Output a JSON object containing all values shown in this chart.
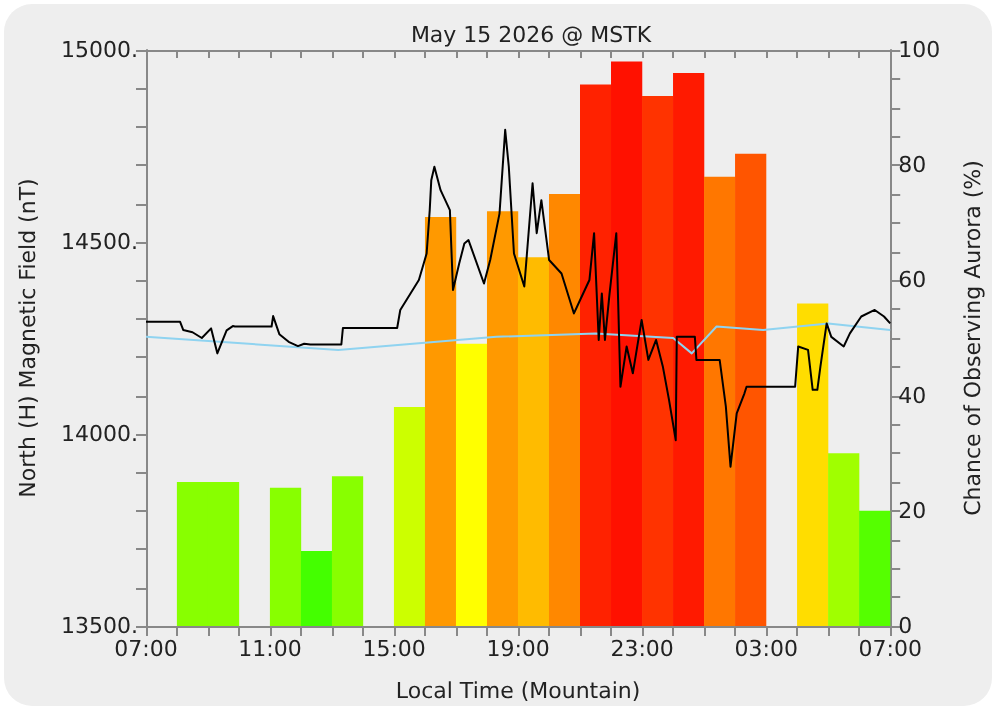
{
  "chart_data": {
    "type": "bar",
    "title": "May 15 2026 @ MSTK",
    "xlabel": "Local Time (Mountain)",
    "ylabel": "North (H) Magnetic Field (nT)",
    "y2label": "Chance of Observing Aurora (%)",
    "xlim": [
      "2026-05-15T07:00",
      "2026-05-16T07:00"
    ],
    "xticks": [
      {
        "value": "2026-05-15T07:00",
        "label": "07:00"
      },
      {
        "value": "2026-05-15T08:00",
        "label": null
      },
      {
        "value": "2026-05-15T09:00",
        "label": null
      },
      {
        "value": "2026-05-15T10:00",
        "label": null
      },
      {
        "value": "2026-05-15T11:00",
        "label": "11:00"
      },
      {
        "value": "2026-05-15T12:00",
        "label": null
      },
      {
        "value": "2026-05-15T13:00",
        "label": null
      },
      {
        "value": "2026-05-15T14:00",
        "label": null
      },
      {
        "value": "2026-05-15T15:00",
        "label": "15:00"
      },
      {
        "value": "2026-05-15T16:00",
        "label": null
      },
      {
        "value": "2026-05-15T17:00",
        "label": null
      },
      {
        "value": "2026-05-15T18:00",
        "label": null
      },
      {
        "value": "2026-05-15T19:00",
        "label": "19:00"
      },
      {
        "value": "2026-05-15T20:00",
        "label": null
      },
      {
        "value": "2026-05-15T21:00",
        "label": null
      },
      {
        "value": "2026-05-15T22:00",
        "label": null
      },
      {
        "value": "2026-05-15T23:00",
        "label": "23:00"
      },
      {
        "value": "2026-05-16T00:00",
        "label": null
      },
      {
        "value": "2026-05-16T01:00",
        "label": null
      },
      {
        "value": "2026-05-16T02:00",
        "label": null
      },
      {
        "value": "2026-05-16T03:00",
        "label": "03:00"
      },
      {
        "value": "2026-05-16T04:00",
        "label": null
      },
      {
        "value": "2026-05-16T05:00",
        "label": null
      },
      {
        "value": "2026-05-16T06:00",
        "label": null
      },
      {
        "value": "2026-05-16T07:00",
        "label": "07:00"
      }
    ],
    "ylim": [
      13500,
      15000
    ],
    "yticks": [
      {
        "value": 13500,
        "label": "13500."
      },
      {
        "value": 13600,
        "label": null
      },
      {
        "value": 13700,
        "label": null
      },
      {
        "value": 13800,
        "label": null
      },
      {
        "value": 13900,
        "label": null
      },
      {
        "value": 14000,
        "label": "14000."
      },
      {
        "value": 14100,
        "label": null
      },
      {
        "value": 14200,
        "label": null
      },
      {
        "value": 14300,
        "label": null
      },
      {
        "value": 14400,
        "label": null
      },
      {
        "value": 14500,
        "label": "14500."
      },
      {
        "value": 14600,
        "label": null
      },
      {
        "value": 14700,
        "label": null
      },
      {
        "value": 14800,
        "label": null
      },
      {
        "value": 14900,
        "label": null
      },
      {
        "value": 15000,
        "label": "15000."
      }
    ],
    "y2lim": [
      0,
      100
    ],
    "y2ticks": [
      0,
      {
        "value": 5,
        "label": null
      },
      {
        "value": 10,
        "label": null
      },
      {
        "value": 15,
        "label": null
      },
      20,
      {
        "value": 25,
        "label": null
      },
      {
        "value": 30,
        "label": null
      },
      {
        "value": 35,
        "label": null
      },
      40,
      {
        "value": 45,
        "label": null
      },
      {
        "value": 50,
        "label": null
      },
      {
        "value": 55,
        "label": null
      },
      60,
      {
        "value": 65,
        "label": null
      },
      {
        "value": 70,
        "label": null
      },
      {
        "value": 75,
        "label": null
      },
      80,
      {
        "value": 85,
        "label": null
      },
      {
        "value": 90,
        "label": null
      },
      {
        "value": 95,
        "label": null
      },
      100
    ],
    "series": [
      {
        "axis": "y2",
        "x": [
          "2026-05-15T08:30",
          "2026-05-15T09:30",
          "2026-05-15T11:30",
          "2026-05-15T12:30",
          "2026-05-15T13:30",
          "2026-05-15T15:30",
          "2026-05-15T16:30",
          "2026-05-15T17:30",
          "2026-05-15T18:30",
          "2026-05-15T19:30",
          "2026-05-15T20:30",
          "2026-05-15T21:30",
          "2026-05-15T22:30",
          "2026-05-15T23:30",
          "2026-05-16T00:30",
          "2026-05-16T01:30",
          "2026-05-16T02:30",
          "2026-05-16T04:30",
          "2026-05-16T05:30",
          "2026-05-16T06:30"
        ],
        "values": [
          25,
          25,
          24,
          13,
          26,
          38,
          71,
          49,
          72,
          64,
          75,
          94,
          98,
          92,
          96,
          78,
          82,
          56,
          30,
          20
        ],
        "colors": [
          "#88ff00",
          "#88ff00",
          "#88ff00",
          "#44ff00",
          "#88ff00",
          "#ccff00",
          "#ff9900",
          "#ffff00",
          "#ff9900",
          "#ffbb00",
          "#ff8800",
          "#ff2200",
          "#ff1100",
          "#ff3300",
          "#ff1a00",
          "#ff7700",
          "#ff5500",
          "#ffdd00",
          "#a0ff00",
          "#55ff00"
        ]
      },
      {
        "type": "line",
        "color": "#8fd3f0",
        "x": [
          "2026-05-15T07:00",
          "2026-05-15T13:12",
          "2026-05-15T18:18",
          "2026-05-15T21:30",
          "2026-05-16T00:00",
          "2026-05-16T00:36",
          "2026-05-16T01:24",
          "2026-05-16T02:54",
          "2026-05-16T05:00",
          "2026-05-16T07:00"
        ],
        "values": [
          14253,
          14219,
          14253,
          14262,
          14250,
          14210,
          14280,
          14271,
          14288,
          14271
        ]
      },
      {
        "type": "line",
        "color": "#000000",
        "x": [
          "2026-05-15T07:00",
          "2026-05-15T08:06",
          "2026-05-15T08:12",
          "2026-05-15T08:30",
          "2026-05-15T08:48",
          "2026-05-15T09:06",
          "2026-05-15T09:18",
          "2026-05-15T09:36",
          "2026-05-15T09:48",
          "2026-05-15T09:52",
          "2026-05-15T11:03",
          "2026-05-15T11:06",
          "2026-05-15T11:18",
          "2026-05-15T11:36",
          "2026-05-15T11:54",
          "2026-05-15T12:06",
          "2026-05-15T12:18",
          "2026-05-15T13:18",
          "2026-05-15T13:21",
          "2026-05-15T15:06",
          "2026-05-15T15:12",
          "2026-05-15T15:48",
          "2026-05-15T16:03",
          "2026-05-15T16:09",
          "2026-05-15T16:12",
          "2026-05-15T16:18",
          "2026-05-15T16:30",
          "2026-05-15T16:48",
          "2026-05-15T16:54",
          "2026-05-15T17:06",
          "2026-05-15T17:16",
          "2026-05-15T17:24",
          "2026-05-15T17:54",
          "2026-05-15T18:06",
          "2026-05-15T18:24",
          "2026-05-15T18:35",
          "2026-05-15T18:42",
          "2026-05-15T18:52",
          "2026-05-15T19:12",
          "2026-05-15T19:28",
          "2026-05-15T19:36",
          "2026-05-15T19:45",
          "2026-05-15T20:00",
          "2026-05-15T20:24",
          "2026-05-15T20:48",
          "2026-05-15T21:00",
          "2026-05-15T21:18",
          "2026-05-15T21:27",
          "2026-05-15T21:36",
          "2026-05-15T21:42",
          "2026-05-15T21:48",
          "2026-05-15T21:57",
          "2026-05-15T22:10",
          "2026-05-15T22:18",
          "2026-05-15T22:30",
          "2026-05-15T22:42",
          "2026-05-15T22:59",
          "2026-05-15T23:12",
          "2026-05-15T23:27",
          "2026-05-15T23:40",
          "2026-05-15T23:52",
          "2026-05-16T00:05",
          "2026-05-16T00:07",
          "2026-05-16T00:16",
          "2026-05-16T00:42",
          "2026-05-16T00:45",
          "2026-05-16T01:30",
          "2026-05-16T01:42",
          "2026-05-16T01:51",
          "2026-05-16T02:03",
          "2026-05-16T02:18",
          "2026-05-16T02:22",
          "2026-05-16T03:56",
          "2026-05-16T04:02",
          "2026-05-16T04:21",
          "2026-05-16T04:30",
          "2026-05-16T04:39",
          "2026-05-16T04:45",
          "2026-05-16T04:57",
          "2026-05-16T05:06",
          "2026-05-16T05:30",
          "2026-05-16T05:42",
          "2026-05-16T06:04",
          "2026-05-16T06:30",
          "2026-05-16T06:48",
          "2026-05-16T07:00"
        ],
        "values": [
          14292,
          14292,
          14271,
          14265,
          14250,
          14275,
          14210,
          14270,
          14281,
          14280,
          14280,
          14307,
          14260,
          14240,
          14229,
          14235,
          14233,
          14233,
          14276,
          14276,
          14323,
          14401,
          14470,
          14583,
          14661,
          14696,
          14635,
          14583,
          14375,
          14444,
          14496,
          14505,
          14392,
          14453,
          14574,
          14792,
          14696,
          14470,
          14384,
          14653,
          14523,
          14609,
          14453,
          14418,
          14314,
          14349,
          14401,
          14523,
          14245,
          14366,
          14245,
          14366,
          14523,
          14123,
          14228,
          14158,
          14297,
          14193,
          14245,
          14176,
          14089,
          13984,
          14253,
          14253,
          14253,
          14193,
          14193,
          14071,
          13915,
          14054,
          14106,
          14123,
          14123,
          14228,
          14219,
          14115,
          14115,
          14176,
          14288,
          14253,
          14228,
          14262,
          14306,
          14323,
          14306,
          14288
        ]
      }
    ]
  }
}
